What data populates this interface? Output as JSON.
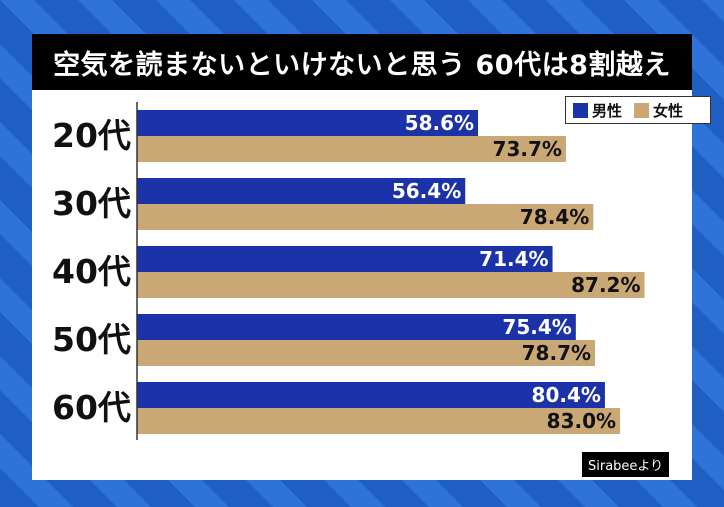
{
  "title": "空気を読まないといけないと思う 60代は8割越え",
  "source": "Sirabeeより",
  "colors": {
    "male": "#1b32a8",
    "female": "#c9a876",
    "background": "#1f5fc4",
    "stripe": "#2e74d8"
  },
  "chart_data": {
    "type": "bar",
    "orientation": "horizontal",
    "categories": [
      "20代",
      "30代",
      "40代",
      "50代",
      "60代"
    ],
    "series": [
      {
        "name": "男性",
        "values": [
          58.6,
          56.4,
          71.4,
          75.4,
          80.4
        ],
        "labels": [
          "58.6%",
          "56.4%",
          "71.4%",
          "75.4%",
          "80.4%"
        ]
      },
      {
        "name": "女性",
        "values": [
          73.7,
          78.4,
          87.2,
          78.7,
          83.0
        ],
        "labels": [
          "73.7%",
          "78.4%",
          "87.2%",
          "78.7%",
          "83.0%"
        ]
      }
    ],
    "xlim": [
      0,
      100
    ],
    "grid": false,
    "legend": "top-right"
  }
}
